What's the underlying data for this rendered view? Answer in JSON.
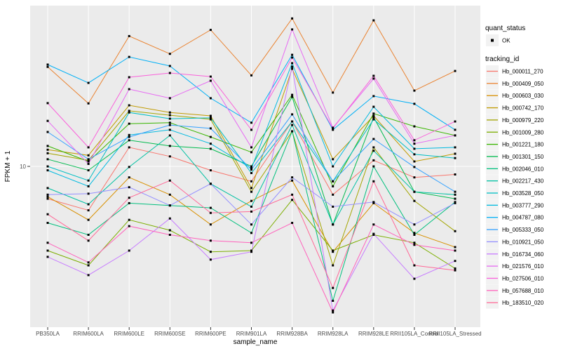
{
  "y_axis": {
    "title": "FPKM + 1",
    "tick_label": "10"
  },
  "x_axis": {
    "title": "sample_name"
  },
  "legend": {
    "quant_status": {
      "title": "quant_status",
      "items": [
        {
          "label": "OK",
          "symbol": "black-point"
        }
      ]
    },
    "tracking_id": {
      "title": "tracking_id"
    }
  },
  "colors": {
    "panel_bg": "#EBEBEB",
    "grid": "#FFFFFF",
    "legend_key_bg": "#F2F2F2",
    "point": "#000000",
    "tick_mark": "#333333",
    "tick_text": "#4D4D4D"
  },
  "chart_data": {
    "type": "line",
    "title": "",
    "xlabel": "sample_name",
    "ylabel": "FPKM + 1",
    "y_scale": "log10",
    "y_ticks": [
      10
    ],
    "ylim": [
      0.79,
      126
    ],
    "grid": "major-white-on-grey",
    "legend_position": "right",
    "point_shape": "black-square",
    "categories": [
      "PB350LA",
      "RRIM600LA",
      "RRIM600LE",
      "RRIM600SE",
      "RRIM600PE",
      "RRIM901LA",
      "RRIM928BA",
      "RRIM928LA",
      "RRIM928LE",
      "RRII105LA_Control",
      "RRII105LA_Stressed"
    ],
    "series": [
      {
        "name": "Hb_000011_270",
        "color": "#F8766D",
        "values": [
          6.0,
          5.0,
          13.5,
          11.7,
          9.4,
          7.9,
          20.3,
          6.4,
          11.0,
          8.4,
          8.8
        ]
      },
      {
        "name": "Hb_000409_050",
        "color": "#EA8331",
        "values": [
          48,
          27,
          78,
          59,
          86,
          42,
          103,
          32,
          100,
          33,
          45
        ]
      },
      {
        "name": "Hb_000603_030",
        "color": "#D89000",
        "values": [
          6.2,
          4.3,
          8.4,
          6.4,
          4.0,
          5.8,
          8.0,
          2.6,
          5.6,
          3.5,
          2.8
        ]
      },
      {
        "name": "Hb_000742_170",
        "color": "#C09B00",
        "values": [
          13.0,
          11.9,
          26.2,
          23.4,
          22.2,
          7.1,
          46.6,
          11.2,
          22.2,
          10.8,
          12.2
        ]
      },
      {
        "name": "Hb_000979_220",
        "color": "#A3A500",
        "values": [
          12.3,
          11.0,
          24.0,
          22.4,
          21.0,
          6.7,
          17.4,
          2.1,
          13.5,
          5.8,
          3.6
        ]
      },
      {
        "name": "Hb_001009_280",
        "color": "#7CAE00",
        "values": [
          2.65,
          2.1,
          4.3,
          3.65,
          2.6,
          2.65,
          5.9,
          2.65,
          3.4,
          3.0,
          2.0
        ]
      },
      {
        "name": "Hb_001221_180",
        "color": "#39B600",
        "values": [
          13.8,
          10.8,
          19.6,
          19.9,
          15.9,
          12.5,
          30.9,
          7.3,
          23.0,
          18.8,
          16.3
        ]
      },
      {
        "name": "Hb_001301_150",
        "color": "#00BB4E",
        "values": [
          11.2,
          9.4,
          15.1,
          13.8,
          13.2,
          10.0,
          29.9,
          4.0,
          21.7,
          6.7,
          6.0
        ]
      },
      {
        "name": "Hb_002046_010",
        "color": "#00BF7D",
        "values": [
          4.1,
          3.4,
          5.6,
          5.4,
          5.2,
          3.5,
          17.4,
          1.2,
          10.0,
          3.4,
          5.7
        ]
      },
      {
        "name": "Hb_002217_430",
        "color": "#00C1A3",
        "values": [
          7.1,
          5.5,
          9.9,
          16.3,
          7.6,
          5.3,
          19.2,
          4.0,
          12.8,
          6.7,
          6.4
        ]
      },
      {
        "name": "Hb_003528_050",
        "color": "#00BFC4",
        "values": [
          10.0,
          8.0,
          23.4,
          21.2,
          21.5,
          9.0,
          20.3,
          7.9,
          21.0,
          12.1,
          11.4
        ]
      },
      {
        "name": "Hb_003777_290",
        "color": "#00BAE0",
        "values": [
          9.4,
          7.3,
          16.4,
          17.8,
          14.3,
          9.7,
          50.9,
          10.0,
          25.6,
          13.2,
          13.5
        ]
      },
      {
        "name": "Hb_004787_080",
        "color": "#00B0F6",
        "values": [
          49.8,
          37.3,
          56.2,
          48.7,
          29.3,
          19.9,
          58.1,
          17.8,
          30.3,
          26.8,
          17.8
        ]
      },
      {
        "name": "Hb_005333_050",
        "color": "#35A2FF",
        "values": [
          17.2,
          11.2,
          15.9,
          19.2,
          18.2,
          9.5,
          22.7,
          7.9,
          15.4,
          9.9,
          6.7
        ]
      },
      {
        "name": "Hb_010921_050",
        "color": "#9590FF",
        "values": [
          6.4,
          6.5,
          7.2,
          5.4,
          7.6,
          4.0,
          8.4,
          5.3,
          5.7,
          4.0,
          5.6
        ]
      },
      {
        "name": "Hb_016734_060",
        "color": "#C77CFF",
        "values": [
          2.4,
          1.8,
          2.65,
          4.4,
          2.3,
          2.6,
          48.2,
          1.03,
          3.45,
          1.7,
          2.25
        ]
      },
      {
        "name": "Hb_021576_010",
        "color": "#E76BF3",
        "values": [
          20.5,
          10.4,
          33.8,
          29.3,
          38.6,
          13.5,
          86.7,
          18.4,
          39.9,
          14.3,
          16.3
        ]
      },
      {
        "name": "Hb_027506_010",
        "color": "#FA62DB",
        "values": [
          27.1,
          13.5,
          40.8,
          43.6,
          41.2,
          17.8,
          55.6,
          18.2,
          41.7,
          15.1,
          20.3
        ]
      },
      {
        "name": "Hb_057688_010",
        "color": "#FF62BC",
        "values": [
          3.0,
          2.2,
          3.9,
          3.4,
          3.1,
          3.0,
          4.1,
          1.0,
          4.0,
          2.9,
          2.65
        ]
      },
      {
        "name": "Hb_183510_020",
        "color": "#FF6A98",
        "values": [
          4.7,
          3.1,
          6.1,
          8.0,
          4.8,
          4.9,
          6.4,
          1.47,
          7.9,
          2.1,
          1.94
        ]
      }
    ]
  }
}
